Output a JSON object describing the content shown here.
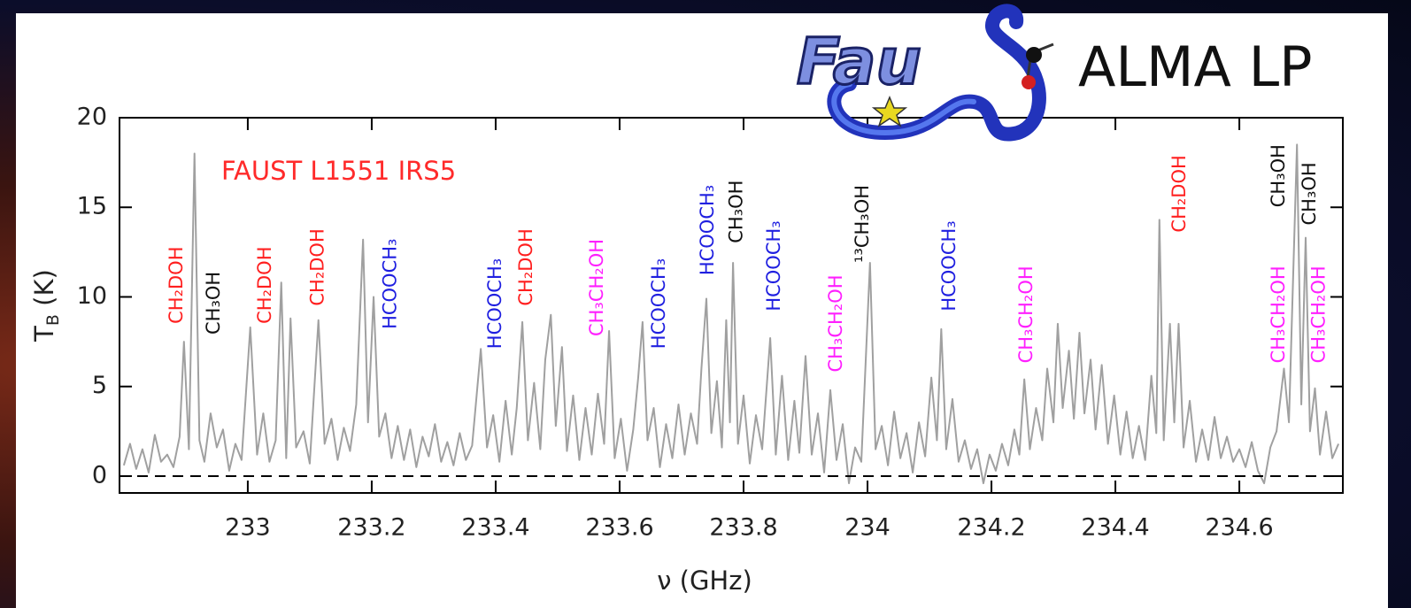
{
  "chart_data": {
    "type": "line",
    "title": "FAUST L1551 IRS5",
    "x_label": "ν (GHz)",
    "y_label": [
      "T",
      "B",
      " (K)"
    ],
    "color": "#a0a0a0",
    "xlim": [
      232.793,
      234.767
    ],
    "ylim": [
      -0.94,
      20
    ],
    "xticks": [
      233,
      233.2,
      233.4,
      233.6,
      233.8,
      234,
      234.2,
      234.4,
      234.6
    ],
    "yticks": [
      0,
      5,
      10,
      15,
      20
    ],
    "reference_line": {
      "y": 0,
      "style": "dashed"
    },
    "x": [
      232.8,
      232.81,
      232.82,
      232.83,
      232.84,
      232.85,
      232.86,
      232.87,
      232.88,
      232.89,
      232.897,
      232.905,
      232.914,
      232.922,
      232.93,
      232.94,
      232.95,
      232.96,
      232.97,
      232.98,
      232.99,
      233.004,
      233.015,
      233.025,
      233.035,
      233.045,
      233.054,
      233.062,
      233.069,
      233.078,
      233.09,
      233.1,
      233.114,
      233.124,
      233.135,
      233.145,
      233.155,
      233.165,
      233.175,
      233.186,
      233.194,
      233.203,
      233.212,
      233.222,
      233.232,
      233.242,
      233.252,
      233.262,
      233.272,
      233.282,
      233.292,
      233.302,
      233.312,
      233.322,
      233.332,
      233.342,
      233.352,
      233.362,
      233.376,
      233.386,
      233.396,
      233.406,
      233.416,
      233.426,
      233.434,
      233.443,
      233.452,
      233.462,
      233.472,
      233.48,
      233.489,
      233.497,
      233.507,
      233.515,
      233.525,
      233.535,
      233.545,
      233.555,
      233.565,
      233.575,
      233.583,
      233.592,
      233.602,
      233.612,
      233.622,
      233.63,
      233.637,
      233.645,
      233.655,
      233.665,
      233.675,
      233.685,
      233.695,
      233.705,
      233.715,
      233.725,
      233.732,
      233.74,
      233.748,
      233.757,
      233.765,
      233.772,
      233.778,
      233.783,
      233.791,
      233.8,
      233.81,
      233.82,
      233.83,
      233.843,
      233.852,
      233.862,
      233.872,
      233.882,
      233.89,
      233.9,
      233.91,
      233.92,
      233.93,
      233.94,
      233.95,
      233.96,
      233.97,
      233.98,
      233.99,
      234.004,
      234.013,
      234.023,
      234.033,
      234.043,
      234.053,
      234.063,
      234.073,
      234.083,
      234.093,
      234.103,
      234.112,
      234.119,
      234.127,
      234.137,
      234.147,
      234.157,
      234.167,
      234.177,
      234.187,
      234.197,
      234.207,
      234.217,
      234.227,
      234.237,
      234.245,
      234.253,
      234.262,
      234.272,
      234.282,
      234.29,
      234.3,
      234.307,
      234.315,
      234.325,
      234.333,
      234.342,
      234.35,
      234.36,
      234.368,
      234.378,
      234.388,
      234.398,
      234.408,
      234.418,
      234.428,
      234.438,
      234.448,
      234.458,
      234.466,
      234.471,
      234.478,
      234.488,
      234.495,
      234.502,
      234.51,
      234.52,
      234.53,
      234.54,
      234.55,
      234.56,
      234.57,
      234.58,
      234.59,
      234.6,
      234.61,
      234.62,
      234.63,
      234.64,
      234.65,
      234.66,
      234.672,
      234.68,
      234.693,
      234.7,
      234.707,
      234.714,
      234.722,
      234.73,
      234.74,
      234.75,
      234.76
    ],
    "values": [
      0.6,
      1.8,
      0.4,
      1.5,
      0.2,
      2.3,
      0.8,
      1.2,
      0.5,
      2.2,
      7.5,
      1.5,
      18.0,
      2.0,
      0.8,
      3.5,
      1.6,
      2.6,
      0.3,
      1.8,
      0.9,
      8.3,
      1.2,
      3.5,
      0.8,
      2.0,
      10.8,
      1.0,
      8.8,
      1.6,
      2.5,
      0.7,
      8.7,
      1.8,
      3.2,
      0.9,
      2.7,
      1.4,
      4.0,
      13.2,
      3.0,
      10.0,
      2.2,
      3.5,
      1.0,
      2.8,
      0.9,
      2.6,
      0.5,
      2.2,
      1.1,
      2.9,
      0.8,
      1.9,
      0.6,
      2.4,
      0.9,
      1.7,
      7.1,
      1.6,
      3.4,
      0.8,
      4.2,
      1.2,
      3.8,
      8.6,
      2.0,
      5.2,
      1.5,
      6.5,
      9.0,
      2.8,
      7.2,
      1.4,
      4.5,
      0.9,
      3.8,
      1.2,
      4.6,
      1.8,
      8.1,
      1.0,
      3.2,
      0.3,
      2.6,
      5.5,
      8.6,
      2.0,
      3.8,
      0.5,
      2.9,
      1.0,
      4.0,
      1.2,
      3.5,
      1.8,
      6.0,
      9.9,
      2.4,
      5.3,
      1.6,
      8.7,
      3.0,
      11.9,
      1.8,
      4.5,
      0.7,
      3.4,
      1.5,
      7.7,
      1.2,
      5.6,
      0.9,
      4.2,
      1.3,
      6.7,
      1.2,
      3.5,
      0.2,
      4.8,
      0.9,
      2.9,
      -0.4,
      1.6,
      0.8,
      11.9,
      1.5,
      2.8,
      0.6,
      3.6,
      1.0,
      2.4,
      0.2,
      3.0,
      1.1,
      5.5,
      2.0,
      8.2,
      1.5,
      4.3,
      0.8,
      2.0,
      0.4,
      1.5,
      -0.4,
      1.2,
      0.3,
      1.8,
      0.6,
      2.6,
      1.2,
      5.4,
      1.5,
      3.8,
      2.0,
      6.0,
      3.0,
      8.5,
      3.8,
      7.0,
      3.2,
      8.0,
      3.5,
      6.5,
      2.6,
      6.2,
      1.8,
      4.5,
      1.2,
      3.6,
      1.0,
      2.8,
      0.9,
      5.6,
      2.4,
      14.3,
      2.0,
      8.5,
      3.0,
      8.5,
      1.6,
      4.2,
      0.8,
      2.6,
      0.9,
      3.3,
      1.0,
      2.2,
      0.8,
      1.5,
      0.5,
      1.9,
      0.3,
      -0.4,
      1.6,
      2.5,
      6.0,
      3.0,
      18.5,
      4.0,
      13.3,
      2.5,
      4.9,
      1.2,
      3.6,
      1.0,
      1.8
    ],
    "annotations": [
      {
        "text": "CH₂DOH",
        "x": 232.886,
        "y": 8.5,
        "color": "#ff1f1f"
      },
      {
        "text": "CH₃OH",
        "x": 232.946,
        "y": 7.9,
        "color": "#111111"
      },
      {
        "text": "CH₂DOH",
        "x": 233.029,
        "y": 8.5,
        "color": "#ff1f1f"
      },
      {
        "text": "CH₂DOH",
        "x": 233.114,
        "y": 9.5,
        "color": "#ff1f1f"
      },
      {
        "text": "HCOOCH₃",
        "x": 233.231,
        "y": 8.2,
        "color": "#1f1fe0"
      },
      {
        "text": "HCOOCH₃",
        "x": 233.4,
        "y": 7.1,
        "color": "#1f1fe0"
      },
      {
        "text": "CH₂DOH",
        "x": 233.45,
        "y": 9.5,
        "color": "#ff1f1f"
      },
      {
        "text": "CH₃CH₂OH",
        "x": 233.564,
        "y": 7.8,
        "color": "#ff1fff"
      },
      {
        "text": "HCOOCH₃",
        "x": 233.664,
        "y": 7.1,
        "color": "#1f1fe0"
      },
      {
        "text": "HCOOCH₃",
        "x": 233.743,
        "y": 11.2,
        "color": "#1f1fe0"
      },
      {
        "text": "CH₃OH",
        "x": 233.789,
        "y": 13.0,
        "color": "#111111"
      },
      {
        "text": "HCOOCH₃",
        "x": 233.85,
        "y": 9.2,
        "color": "#1f1fe0"
      },
      {
        "text": "CH₃CH₂OH",
        "x": 233.95,
        "y": 5.8,
        "color": "#ff1fff"
      },
      {
        "text": "¹³CH₃OH",
        "x": 233.993,
        "y": 11.9,
        "color": "#111111"
      },
      {
        "text": "HCOOCH₃",
        "x": 234.133,
        "y": 9.2,
        "color": "#1f1fe0"
      },
      {
        "text": "CH₃CH₂OH",
        "x": 234.257,
        "y": 6.3,
        "color": "#ff1fff"
      },
      {
        "text": "CH₂DOH",
        "x": 234.504,
        "y": 13.6,
        "color": "#ff1f1f"
      },
      {
        "text": "CH₃OH",
        "x": 234.664,
        "y": 15.0,
        "color": "#111111"
      },
      {
        "text": "CH₃CH₂OH",
        "x": 234.664,
        "y": 6.3,
        "color": "#ff1fff"
      },
      {
        "text": "CH₃OH",
        "x": 234.714,
        "y": 14.0,
        "color": "#111111"
      },
      {
        "text": "CH₃CH₂OH",
        "x": 234.729,
        "y": 6.3,
        "color": "#ff1fff"
      }
    ]
  },
  "logo": {
    "text": "Fau",
    "label": "ALMA LP"
  }
}
